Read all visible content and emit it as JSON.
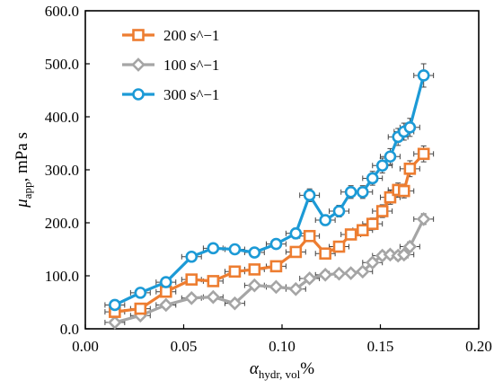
{
  "chart_data": {
    "type": "line",
    "xlabel": {
      "symbol": "α",
      "sub": "hydr, vol",
      "unit": "%"
    },
    "ylabel": {
      "symbol": "μ",
      "sub": "app",
      "unit": ", mPa s"
    },
    "xlim": [
      0.0,
      0.2
    ],
    "ylim": [
      0.0,
      600.0
    ],
    "x_ticks": [
      0.0,
      0.05,
      0.1,
      0.15,
      0.2
    ],
    "x_tick_labels": [
      "0.00",
      "0.05",
      "0.10",
      "0.15",
      "0.20"
    ],
    "y_ticks": [
      0,
      100,
      200,
      300,
      400,
      500,
      600
    ],
    "y_tick_labels": [
      "0.0",
      "100.0",
      "200.0",
      "300.0",
      "400.0",
      "500.0",
      "600.0"
    ],
    "grid": false,
    "legend_position": "top-left",
    "series": [
      {
        "name": "200 s^−1",
        "color": "#ED7D31",
        "marker": "square",
        "x": [
          0.015,
          0.028,
          0.041,
          0.054,
          0.065,
          0.076,
          0.086,
          0.097,
          0.107,
          0.114,
          0.122,
          0.129,
          0.135,
          0.141,
          0.146,
          0.151,
          0.155,
          0.159,
          0.162,
          0.165,
          0.172
        ],
        "y": [
          32,
          38,
          70,
          93,
          90,
          108,
          112,
          118,
          145,
          175,
          142,
          155,
          178,
          186,
          198,
          222,
          248,
          262,
          260,
          302,
          330
        ],
        "xerr": [
          0.005,
          0.005,
          0.005,
          0.005,
          0.005,
          0.005,
          0.005,
          0.005,
          0.005,
          0.005,
          0.005,
          0.005,
          0.005,
          0.005,
          0.005,
          0.005,
          0.005,
          0.005,
          0.005,
          0.005,
          0.005
        ],
        "yerr": [
          5,
          5,
          6,
          7,
          7,
          8,
          8,
          8,
          9,
          10,
          9,
          9,
          10,
          10,
          11,
          12,
          13,
          13,
          13,
          15,
          15
        ]
      },
      {
        "name": "100 s^−1",
        "color": "#A5A5A5",
        "marker": "diamond",
        "x": [
          0.015,
          0.028,
          0.041,
          0.054,
          0.065,
          0.076,
          0.086,
          0.097,
          0.107,
          0.114,
          0.122,
          0.129,
          0.135,
          0.141,
          0.146,
          0.151,
          0.155,
          0.159,
          0.162,
          0.165,
          0.172
        ],
        "y": [
          12,
          25,
          45,
          58,
          60,
          48,
          82,
          79,
          75,
          95,
          102,
          104,
          105,
          108,
          125,
          138,
          140,
          138,
          140,
          155,
          207
        ],
        "xerr": [
          0.005,
          0.005,
          0.005,
          0.005,
          0.005,
          0.005,
          0.005,
          0.005,
          0.005,
          0.005,
          0.005,
          0.005,
          0.005,
          0.005,
          0.005,
          0.005,
          0.005,
          0.005,
          0.005,
          0.005,
          0.005
        ],
        "yerr": [
          4,
          4,
          5,
          5,
          5,
          5,
          6,
          6,
          6,
          7,
          7,
          7,
          7,
          7,
          8,
          8,
          8,
          8,
          8,
          9,
          10
        ]
      },
      {
        "name": "300 s^−1",
        "color": "#1C9AD6",
        "marker": "circle",
        "x": [
          0.015,
          0.028,
          0.041,
          0.054,
          0.065,
          0.076,
          0.086,
          0.097,
          0.107,
          0.114,
          0.122,
          0.129,
          0.135,
          0.141,
          0.146,
          0.151,
          0.155,
          0.159,
          0.162,
          0.165,
          0.172
        ],
        "y": [
          45,
          68,
          88,
          136,
          152,
          150,
          144,
          160,
          180,
          252,
          205,
          222,
          258,
          258,
          284,
          308,
          325,
          362,
          372,
          380,
          478
        ],
        "xerr": [
          0.005,
          0.005,
          0.005,
          0.005,
          0.005,
          0.005,
          0.005,
          0.005,
          0.005,
          0.005,
          0.005,
          0.005,
          0.005,
          0.005,
          0.005,
          0.005,
          0.005,
          0.005,
          0.005,
          0.005,
          0.005
        ],
        "yerr": [
          5,
          6,
          7,
          8,
          8,
          8,
          8,
          9,
          10,
          12,
          10,
          11,
          12,
          12,
          13,
          14,
          15,
          16,
          16,
          17,
          22
        ]
      }
    ]
  }
}
